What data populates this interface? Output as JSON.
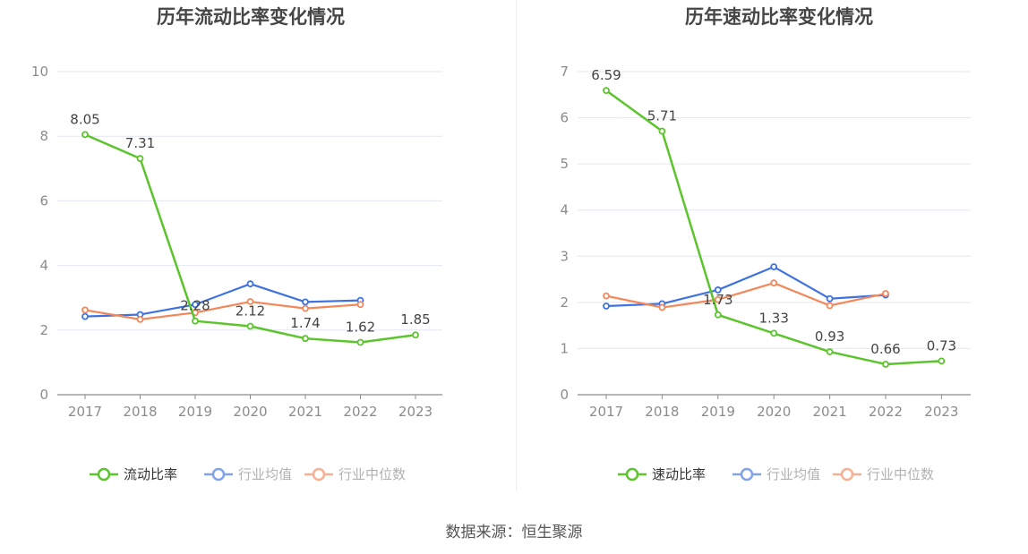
{
  "colors": {
    "primary": "#5cc42c",
    "avg": "#3f72e0",
    "median": "#f4875a",
    "axis": "#8c8c8c",
    "grid": "#e3e7f2",
    "tick_text": "#8c8c8c",
    "label_text": "#444444",
    "title_text": "#464646"
  },
  "source_text": "数据来源：恒生聚源",
  "chart_data": [
    {
      "type": "line",
      "title": "历年流动比率变化情况",
      "categories": [
        "2017",
        "2018",
        "2019",
        "2020",
        "2021",
        "2022",
        "2023"
      ],
      "ylim": [
        0,
        10
      ],
      "yticks": [
        0,
        2,
        4,
        6,
        8,
        10
      ],
      "xlabel": "",
      "ylabel": "",
      "grid": true,
      "legend_position": "bottom",
      "series": [
        {
          "name": "流动比率",
          "color_key": "primary",
          "values": [
            8.05,
            7.31,
            2.28,
            2.12,
            1.74,
            1.62,
            1.85
          ],
          "labels": [
            "8.05",
            "7.31",
            "2.28",
            "2.12",
            "1.74",
            "1.62",
            "1.85"
          ]
        },
        {
          "name": "行业均值",
          "color_key": "avg",
          "values": [
            2.42,
            2.48,
            2.79,
            3.43,
            2.87,
            2.92,
            null
          ]
        },
        {
          "name": "行业中位数",
          "color_key": "median",
          "values": [
            2.62,
            2.33,
            2.54,
            2.88,
            2.67,
            2.79,
            null
          ]
        }
      ]
    },
    {
      "type": "line",
      "title": "历年速动比率变化情况",
      "categories": [
        "2017",
        "2018",
        "2019",
        "2020",
        "2021",
        "2022",
        "2023"
      ],
      "ylim": [
        0,
        7
      ],
      "yticks": [
        0,
        1,
        2,
        3,
        4,
        5,
        6,
        7
      ],
      "xlabel": "",
      "ylabel": "",
      "grid": true,
      "legend_position": "bottom",
      "series": [
        {
          "name": "速动比率",
          "color_key": "primary",
          "values": [
            6.59,
            5.71,
            1.73,
            1.33,
            0.93,
            0.66,
            0.73
          ],
          "labels": [
            "6.59",
            "5.71",
            "1.73",
            "1.33",
            "0.93",
            "0.66",
            "0.73"
          ]
        },
        {
          "name": "行业均值",
          "color_key": "avg",
          "values": [
            1.92,
            1.97,
            2.27,
            2.77,
            2.08,
            2.16,
            null
          ]
        },
        {
          "name": "行业中位数",
          "color_key": "median",
          "values": [
            2.14,
            1.89,
            2.06,
            2.42,
            1.93,
            2.19,
            null
          ]
        }
      ]
    }
  ]
}
